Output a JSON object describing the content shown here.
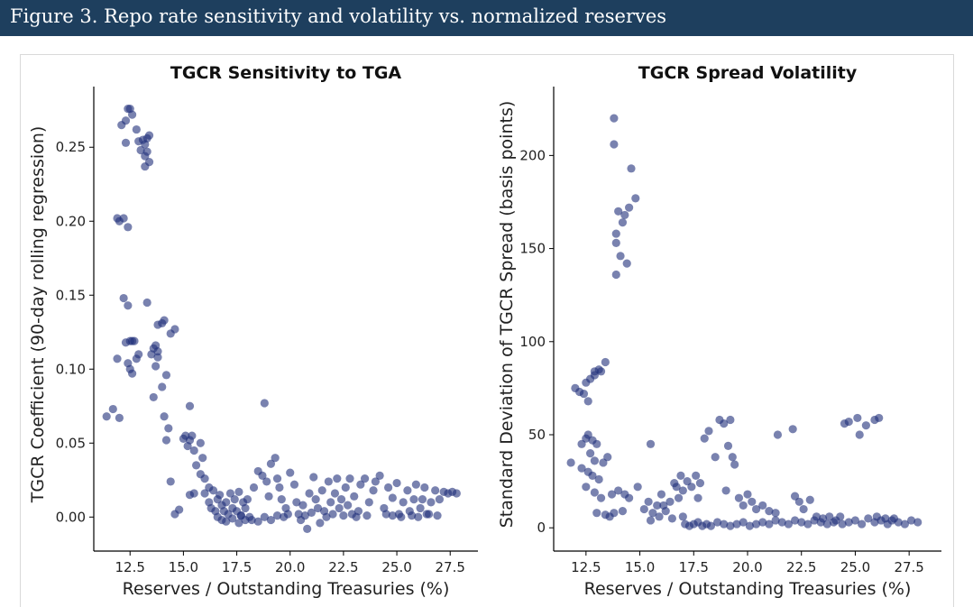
{
  "header": {
    "title": "Figure 3. Repo rate sensitivity and volatility vs. normalized reserves"
  },
  "colors": {
    "header_bg": "#1e3f5e",
    "points": "#1f2f7a"
  },
  "chart_data": [
    {
      "type": "scatter",
      "title": "TGCR Sensitivity to TGA",
      "xlabel": "Reserves / Outstanding Treasuries (%)",
      "ylabel": "TGCR Coefficient (90-day rolling regression)",
      "xlim": [
        10.8,
        28.8
      ],
      "ylim": [
        -0.023,
        0.291
      ],
      "xticks": [
        "12.5",
        "15.0",
        "17.5",
        "20.0",
        "22.5",
        "25.0",
        "27.5"
      ],
      "yticks": [
        "0.00",
        "0.05",
        "0.10",
        "0.15",
        "0.20",
        "0.25"
      ],
      "grid": false,
      "legend": "none",
      "points": [
        [
          11.4,
          0.068
        ],
        [
          11.7,
          0.073
        ],
        [
          12.0,
          0.067
        ],
        [
          11.9,
          0.107
        ],
        [
          11.9,
          0.202
        ],
        [
          12.0,
          0.2
        ],
        [
          12.2,
          0.202
        ],
        [
          12.4,
          0.196
        ],
        [
          12.1,
          0.265
        ],
        [
          12.3,
          0.268
        ],
        [
          12.4,
          0.276
        ],
        [
          12.5,
          0.276
        ],
        [
          12.6,
          0.272
        ],
        [
          12.3,
          0.253
        ],
        [
          12.8,
          0.262
        ],
        [
          12.9,
          0.254
        ],
        [
          13.0,
          0.248
        ],
        [
          13.1,
          0.255
        ],
        [
          13.2,
          0.252
        ],
        [
          13.3,
          0.256
        ],
        [
          13.4,
          0.258
        ],
        [
          13.2,
          0.244
        ],
        [
          13.4,
          0.24
        ],
        [
          13.2,
          0.237
        ],
        [
          13.3,
          0.247
        ],
        [
          12.2,
          0.148
        ],
        [
          12.4,
          0.143
        ],
        [
          13.3,
          0.145
        ],
        [
          12.3,
          0.118
        ],
        [
          12.5,
          0.119
        ],
        [
          12.6,
          0.119
        ],
        [
          12.7,
          0.119
        ],
        [
          12.4,
          0.104
        ],
        [
          12.5,
          0.1
        ],
        [
          12.6,
          0.097
        ],
        [
          12.8,
          0.107
        ],
        [
          12.9,
          0.11
        ],
        [
          13.5,
          0.11
        ],
        [
          13.7,
          0.116
        ],
        [
          13.8,
          0.112
        ],
        [
          13.6,
          0.114
        ],
        [
          13.7,
          0.102
        ],
        [
          13.8,
          0.108
        ],
        [
          13.6,
          0.081
        ],
        [
          13.8,
          0.13
        ],
        [
          14.0,
          0.131
        ],
        [
          14.1,
          0.133
        ],
        [
          14.4,
          0.124
        ],
        [
          14.6,
          0.127
        ],
        [
          14.2,
          0.096
        ],
        [
          14.0,
          0.088
        ],
        [
          14.1,
          0.068
        ],
        [
          14.3,
          0.06
        ],
        [
          14.2,
          0.052
        ],
        [
          14.4,
          0.024
        ],
        [
          14.6,
          0.002
        ],
        [
          14.8,
          0.005
        ],
        [
          15.0,
          0.053
        ],
        [
          15.1,
          0.055
        ],
        [
          15.3,
          0.052
        ],
        [
          15.4,
          0.055
        ],
        [
          15.2,
          0.048
        ],
        [
          15.5,
          0.045
        ],
        [
          15.8,
          0.05
        ],
        [
          15.9,
          0.04
        ],
        [
          15.6,
          0.035
        ],
        [
          15.8,
          0.029
        ],
        [
          16.0,
          0.026
        ],
        [
          16.2,
          0.02
        ],
        [
          16.4,
          0.018
        ],
        [
          15.3,
          0.075
        ],
        [
          15.3,
          0.015
        ],
        [
          15.5,
          0.016
        ],
        [
          16.0,
          0.016
        ],
        [
          16.2,
          0.01
        ],
        [
          16.3,
          0.006
        ],
        [
          16.5,
          0.004
        ],
        [
          16.6,
          0.012
        ],
        [
          16.7,
          0.015
        ],
        [
          16.8,
          0.008
        ],
        [
          16.9,
          0.004
        ],
        [
          17.0,
          0.01
        ],
        [
          17.1,
          0.002
        ],
        [
          17.2,
          0.016
        ],
        [
          17.3,
          0.006
        ],
        [
          17.4,
          0.012
        ],
        [
          17.5,
          0.004
        ],
        [
          17.6,
          0.017
        ],
        [
          17.7,
          0.001
        ],
        [
          17.8,
          0.01
        ],
        [
          17.9,
          0.006
        ],
        [
          18.0,
          0.012
        ],
        [
          16.8,
          -0.002
        ],
        [
          17.0,
          -0.003
        ],
        [
          17.3,
          -0.001
        ],
        [
          17.6,
          -0.004
        ],
        [
          17.9,
          -0.002
        ],
        [
          18.1,
          0.0
        ],
        [
          18.3,
          0.02
        ],
        [
          18.5,
          0.031
        ],
        [
          18.7,
          0.028
        ],
        [
          18.8,
          0.077
        ],
        [
          18.9,
          0.024
        ],
        [
          19.0,
          0.014
        ],
        [
          19.1,
          0.036
        ],
        [
          19.3,
          0.04
        ],
        [
          19.4,
          0.026
        ],
        [
          19.5,
          0.02
        ],
        [
          19.6,
          0.012
        ],
        [
          19.8,
          0.006
        ],
        [
          19.9,
          0.002
        ],
        [
          18.2,
          -0.002
        ],
        [
          18.5,
          -0.003
        ],
        [
          18.8,
          0.0
        ],
        [
          19.1,
          -0.002
        ],
        [
          19.4,
          0.001
        ],
        [
          19.7,
          0.0
        ],
        [
          20.0,
          0.03
        ],
        [
          20.2,
          0.022
        ],
        [
          20.3,
          0.01
        ],
        [
          20.4,
          0.002
        ],
        [
          20.5,
          -0.002
        ],
        [
          20.6,
          0.008
        ],
        [
          20.8,
          -0.008
        ],
        [
          20.9,
          0.016
        ],
        [
          21.0,
          0.003
        ],
        [
          21.1,
          0.027
        ],
        [
          21.2,
          0.012
        ],
        [
          21.3,
          0.006
        ],
        [
          21.4,
          -0.004
        ],
        [
          21.5,
          0.018
        ],
        [
          21.6,
          0.004
        ],
        [
          21.8,
          0.024
        ],
        [
          21.9,
          0.01
        ],
        [
          22.0,
          0.002
        ],
        [
          22.1,
          0.016
        ],
        [
          22.2,
          0.026
        ],
        [
          22.3,
          0.006
        ],
        [
          22.4,
          0.012
        ],
        [
          22.5,
          0.001
        ],
        [
          22.6,
          0.02
        ],
        [
          22.7,
          0.008
        ],
        [
          22.8,
          0.026
        ],
        [
          23.0,
          0.014
        ],
        [
          23.2,
          0.004
        ],
        [
          23.3,
          0.022
        ],
        [
          23.5,
          0.026
        ],
        [
          23.7,
          0.01
        ],
        [
          23.9,
          0.018
        ],
        [
          24.0,
          0.024
        ],
        [
          24.2,
          0.028
        ],
        [
          24.4,
          0.006
        ],
        [
          24.6,
          0.02
        ],
        [
          24.8,
          0.013
        ],
        [
          25.0,
          0.023
        ],
        [
          25.1,
          0.002
        ],
        [
          25.3,
          0.01
        ],
        [
          25.5,
          0.018
        ],
        [
          25.6,
          0.004
        ],
        [
          25.8,
          0.012
        ],
        [
          25.9,
          0.022
        ],
        [
          26.1,
          0.006
        ],
        [
          26.2,
          0.012
        ],
        [
          26.3,
          0.02
        ],
        [
          26.5,
          0.002
        ],
        [
          26.6,
          0.01
        ],
        [
          26.8,
          0.018
        ],
        [
          26.9,
          0.001
        ],
        [
          27.0,
          0.012
        ],
        [
          27.2,
          0.017
        ],
        [
          27.4,
          0.016
        ],
        [
          27.6,
          0.017
        ],
        [
          27.8,
          0.016
        ],
        [
          24.5,
          0.002
        ],
        [
          24.8,
          0.001
        ],
        [
          25.2,
          0.0
        ],
        [
          25.7,
          0.001
        ],
        [
          26.0,
          0.0
        ],
        [
          26.4,
          0.002
        ],
        [
          23.6,
          0.001
        ],
        [
          23.1,
          0.0
        ],
        [
          22.9,
          0.002
        ],
        [
          21.7,
          0.0
        ],
        [
          20.7,
          0.001
        ],
        [
          17.7,
          0.001
        ],
        [
          16.6,
          0.0
        ]
      ]
    },
    {
      "type": "scatter",
      "title": "TGCR Spread Volatility",
      "xlabel": "Reserves / Outstanding Treasuries (%)",
      "ylabel": "Standard Deviation of TGCR Spread (basis points)",
      "xlim": [
        11.0,
        29.0
      ],
      "ylim": [
        -12.5,
        237
      ],
      "xticks": [
        "12.5",
        "15.0",
        "17.5",
        "20.0",
        "22.5",
        "25.0",
        "27.5"
      ],
      "yticks": [
        "0",
        "50",
        "100",
        "150",
        "200"
      ],
      "grid": false,
      "legend": "none",
      "points": [
        [
          11.8,
          35
        ],
        [
          12.0,
          75
        ],
        [
          12.2,
          73
        ],
        [
          12.4,
          72
        ],
        [
          12.5,
          78
        ],
        [
          12.7,
          80
        ],
        [
          12.9,
          84
        ],
        [
          13.1,
          85
        ],
        [
          13.4,
          89
        ],
        [
          13.2,
          84
        ],
        [
          12.6,
          68
        ],
        [
          12.9,
          82
        ],
        [
          12.3,
          45
        ],
        [
          12.5,
          48
        ],
        [
          12.6,
          50
        ],
        [
          12.8,
          47
        ],
        [
          13.0,
          45
        ],
        [
          12.7,
          40
        ],
        [
          12.9,
          36
        ],
        [
          12.3,
          32
        ],
        [
          12.6,
          30
        ],
        [
          12.8,
          28
        ],
        [
          13.1,
          26
        ],
        [
          13.3,
          35
        ],
        [
          13.5,
          38
        ],
        [
          12.5,
          22
        ],
        [
          12.9,
          19
        ],
        [
          13.2,
          16
        ],
        [
          13.0,
          8
        ],
        [
          13.4,
          7
        ],
        [
          13.8,
          220
        ],
        [
          13.8,
          206
        ],
        [
          14.6,
          193
        ],
        [
          14.8,
          177
        ],
        [
          14.0,
          170
        ],
        [
          14.3,
          168
        ],
        [
          14.2,
          164
        ],
        [
          14.5,
          172
        ],
        [
          13.9,
          158
        ],
        [
          13.9,
          153
        ],
        [
          14.1,
          146
        ],
        [
          14.4,
          142
        ],
        [
          13.9,
          136
        ],
        [
          13.7,
          18
        ],
        [
          14.0,
          20
        ],
        [
          14.3,
          18
        ],
        [
          14.5,
          16
        ],
        [
          13.6,
          6
        ],
        [
          13.8,
          8
        ],
        [
          14.2,
          9
        ],
        [
          14.9,
          22
        ],
        [
          15.2,
          10
        ],
        [
          15.4,
          14
        ],
        [
          15.5,
          45
        ],
        [
          15.6,
          8
        ],
        [
          15.8,
          12
        ],
        [
          16.0,
          18
        ],
        [
          16.2,
          9
        ],
        [
          16.4,
          14
        ],
        [
          16.6,
          24
        ],
        [
          16.7,
          22
        ],
        [
          16.8,
          16
        ],
        [
          16.9,
          28
        ],
        [
          17.0,
          20
        ],
        [
          17.2,
          25
        ],
        [
          17.4,
          22
        ],
        [
          17.6,
          28
        ],
        [
          17.7,
          16
        ],
        [
          17.8,
          24
        ],
        [
          15.5,
          4
        ],
        [
          15.9,
          6
        ],
        [
          16.1,
          12
        ],
        [
          16.5,
          5
        ],
        [
          17.0,
          6
        ],
        [
          18.0,
          48
        ],
        [
          18.2,
          52
        ],
        [
          18.5,
          38
        ],
        [
          18.7,
          58
        ],
        [
          18.9,
          56
        ],
        [
          19.1,
          44
        ],
        [
          19.2,
          58
        ],
        [
          19.3,
          38
        ],
        [
          19.4,
          34
        ],
        [
          19.0,
          20
        ],
        [
          19.6,
          16
        ],
        [
          19.8,
          12
        ],
        [
          20.0,
          18
        ],
        [
          20.2,
          14
        ],
        [
          20.4,
          10
        ],
        [
          20.7,
          12
        ],
        [
          21.0,
          9
        ],
        [
          21.3,
          8
        ],
        [
          21.4,
          50
        ],
        [
          22.1,
          53
        ],
        [
          17.1,
          2
        ],
        [
          17.3,
          1
        ],
        [
          17.5,
          2
        ],
        [
          17.7,
          3
        ],
        [
          17.9,
          1
        ],
        [
          18.1,
          2
        ],
        [
          18.3,
          1
        ],
        [
          18.6,
          3
        ],
        [
          18.9,
          2
        ],
        [
          19.2,
          1
        ],
        [
          19.5,
          2
        ],
        [
          19.8,
          3
        ],
        [
          20.1,
          1
        ],
        [
          20.4,
          2
        ],
        [
          20.7,
          3
        ],
        [
          21.0,
          2
        ],
        [
          21.3,
          4
        ],
        [
          21.6,
          3
        ],
        [
          21.9,
          2
        ],
        [
          22.2,
          4
        ],
        [
          22.5,
          3
        ],
        [
          22.8,
          2
        ],
        [
          23.1,
          4
        ],
        [
          23.4,
          3
        ],
        [
          23.7,
          2
        ],
        [
          24.0,
          3
        ],
        [
          22.2,
          17
        ],
        [
          22.4,
          14
        ],
        [
          22.6,
          10
        ],
        [
          22.9,
          15
        ],
        [
          23.2,
          6
        ],
        [
          23.5,
          5
        ],
        [
          23.8,
          6
        ],
        [
          24.1,
          4
        ],
        [
          24.3,
          6
        ],
        [
          24.5,
          56
        ],
        [
          24.7,
          57
        ],
        [
          25.1,
          59
        ],
        [
          25.2,
          50
        ],
        [
          25.5,
          55
        ],
        [
          25.9,
          58
        ],
        [
          26.1,
          59
        ],
        [
          24.4,
          2
        ],
        [
          24.7,
          3
        ],
        [
          25.0,
          4
        ],
        [
          25.3,
          2
        ],
        [
          25.6,
          5
        ],
        [
          25.9,
          3
        ],
        [
          26.2,
          4
        ],
        [
          26.5,
          2
        ],
        [
          26.8,
          5
        ],
        [
          27.0,
          3
        ],
        [
          27.3,
          2
        ],
        [
          27.6,
          4
        ],
        [
          27.9,
          3
        ],
        [
          26.0,
          6
        ],
        [
          26.4,
          5
        ],
        [
          26.7,
          4
        ]
      ]
    }
  ]
}
